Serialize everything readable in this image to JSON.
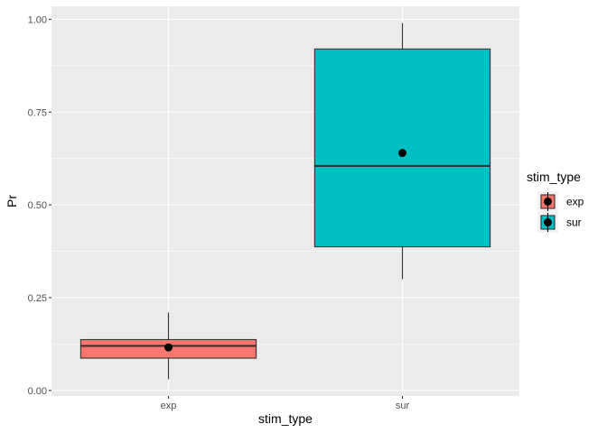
{
  "chart_data": {
    "type": "box",
    "xlabel": "stim_type",
    "ylabel": "Pr",
    "ylim": [
      -0.015,
      1.035
    ],
    "yticks": [
      0.0,
      0.25,
      0.5,
      0.75,
      1.0
    ],
    "ytick_labels": [
      "0.00",
      "0.25",
      "0.50",
      "0.75",
      "1.00"
    ],
    "categories": [
      "exp",
      "sur"
    ],
    "grid": true,
    "legend": {
      "title": "stim_type",
      "position": "right",
      "entries": [
        "exp",
        "sur"
      ]
    },
    "colors": {
      "exp": "#F8766D",
      "sur": "#00BFC4",
      "panel": "#EBEBEB",
      "grid": "#FFFFFF",
      "outline": "#333333"
    },
    "boxes": [
      {
        "category": "exp",
        "min": 0.03,
        "q1": 0.087,
        "median": 0.12,
        "q3": 0.137,
        "max": 0.21,
        "mean": 0.116
      },
      {
        "category": "sur",
        "min": 0.3,
        "q1": 0.387,
        "median": 0.605,
        "q3": 0.92,
        "max": 0.99,
        "mean": 0.64
      }
    ]
  }
}
